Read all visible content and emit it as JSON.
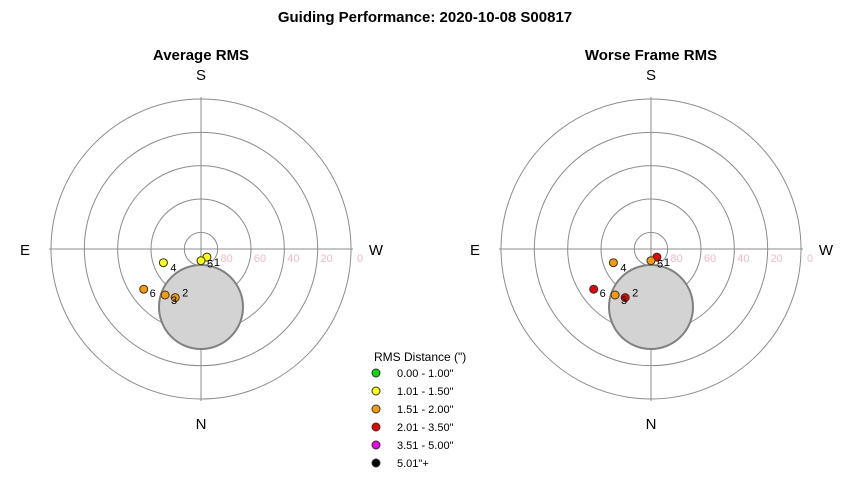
{
  "title": "Guiding Performance: 2020-10-08 S00817",
  "legend": {
    "title": "RMS Distance (\")",
    "entries": [
      {
        "label": "0.00 - 1.00\"",
        "color": "#00dd00"
      },
      {
        "label": "1.01 - 1.50\"",
        "color": "#ffff00"
      },
      {
        "label": "1.51 - 2.00\"",
        "color": "#ff9900"
      },
      {
        "label": "2.01 - 3.50\"",
        "color": "#ee0000"
      },
      {
        "label": "3.51 - 5.00\"",
        "color": "#ee00ee"
      },
      {
        "label": "5.01\"+",
        "color": "#000000"
      }
    ]
  },
  "chart_data": [
    {
      "type": "scatter",
      "projection": "polar-sky",
      "title": "Average RMS",
      "direction_labels": {
        "top": "S",
        "bottom": "N",
        "left": "E",
        "right": "W"
      },
      "altitude_rings": [
        80,
        60,
        40,
        20,
        0
      ],
      "altitude_tick_labels": [
        "80",
        "60",
        "40",
        "20",
        "0"
      ],
      "points": [
        {
          "label": "1",
          "az": 216,
          "alt": 84,
          "rms_class": 1
        },
        {
          "label": "2",
          "az": 152,
          "alt": 57,
          "rms_class": 2
        },
        {
          "label": "3",
          "az": 142,
          "alt": 55,
          "rms_class": 2
        },
        {
          "label": "4",
          "az": 110,
          "alt": 66,
          "rms_class": 1
        },
        {
          "label": "5",
          "az": 180,
          "alt": 83,
          "rms_class": 1
        },
        {
          "label": "6",
          "az": 125,
          "alt": 48,
          "rms_class": 2
        }
      ]
    },
    {
      "type": "scatter",
      "projection": "polar-sky",
      "title": "Worse Frame RMS",
      "direction_labels": {
        "top": "S",
        "bottom": "N",
        "left": "E",
        "right": "W"
      },
      "altitude_rings": [
        80,
        60,
        40,
        20,
        0
      ],
      "altitude_tick_labels": [
        "80",
        "60",
        "40",
        "20",
        "0"
      ],
      "points": [
        {
          "label": "1",
          "az": 216,
          "alt": 84,
          "rms_class": 3
        },
        {
          "label": "2",
          "az": 152,
          "alt": 57,
          "rms_class": 3
        },
        {
          "label": "3",
          "az": 142,
          "alt": 55,
          "rms_class": 2
        },
        {
          "label": "4",
          "az": 110,
          "alt": 66,
          "rms_class": 2
        },
        {
          "label": "5",
          "az": 180,
          "alt": 83,
          "rms_class": 2
        },
        {
          "label": "6",
          "az": 125,
          "alt": 48,
          "rms_class": 3
        }
      ]
    }
  ]
}
